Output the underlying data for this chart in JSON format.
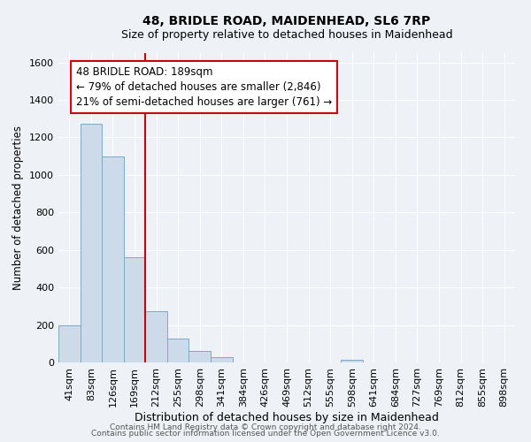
{
  "title": "48, BRIDLE ROAD, MAIDENHEAD, SL6 7RP",
  "subtitle": "Size of property relative to detached houses in Maidenhead",
  "xlabel": "Distribution of detached houses by size in Maidenhead",
  "ylabel": "Number of detached properties",
  "footer_line1": "Contains HM Land Registry data © Crown copyright and database right 2024.",
  "footer_line2": "Contains public sector information licensed under the Open Government Licence v3.0.",
  "bar_labels": [
    "41sqm",
    "83sqm",
    "126sqm",
    "169sqm",
    "212sqm",
    "255sqm",
    "298sqm",
    "341sqm",
    "384sqm",
    "426sqm",
    "469sqm",
    "512sqm",
    "555sqm",
    "598sqm",
    "641sqm",
    "684sqm",
    "727sqm",
    "769sqm",
    "812sqm",
    "855sqm",
    "898sqm"
  ],
  "bar_values": [
    200,
    1275,
    1100,
    560,
    275,
    125,
    62,
    30,
    0,
    0,
    0,
    0,
    0,
    15,
    0,
    0,
    0,
    0,
    0,
    0,
    0
  ],
  "bar_color": "#ccdaea",
  "bar_edge_color": "#7aaaca",
  "vline_color": "#cc0000",
  "annotation_title": "48 BRIDLE ROAD: 189sqm",
  "annotation_line1": "← 79% of detached houses are smaller (2,846)",
  "annotation_line2": "21% of semi-detached houses are larger (761) →",
  "annotation_box_color": "#ffffff",
  "annotation_box_edge": "#cc0000",
  "ylim": [
    0,
    1650
  ],
  "yticks": [
    0,
    200,
    400,
    600,
    800,
    1000,
    1200,
    1400,
    1600
  ],
  "title_fontsize": 10,
  "subtitle_fontsize": 9,
  "xlabel_fontsize": 9,
  "ylabel_fontsize": 8.5,
  "tick_fontsize": 8,
  "footer_fontsize": 6.5,
  "annotation_fontsize": 8.5,
  "bg_color": "#eef2f6"
}
